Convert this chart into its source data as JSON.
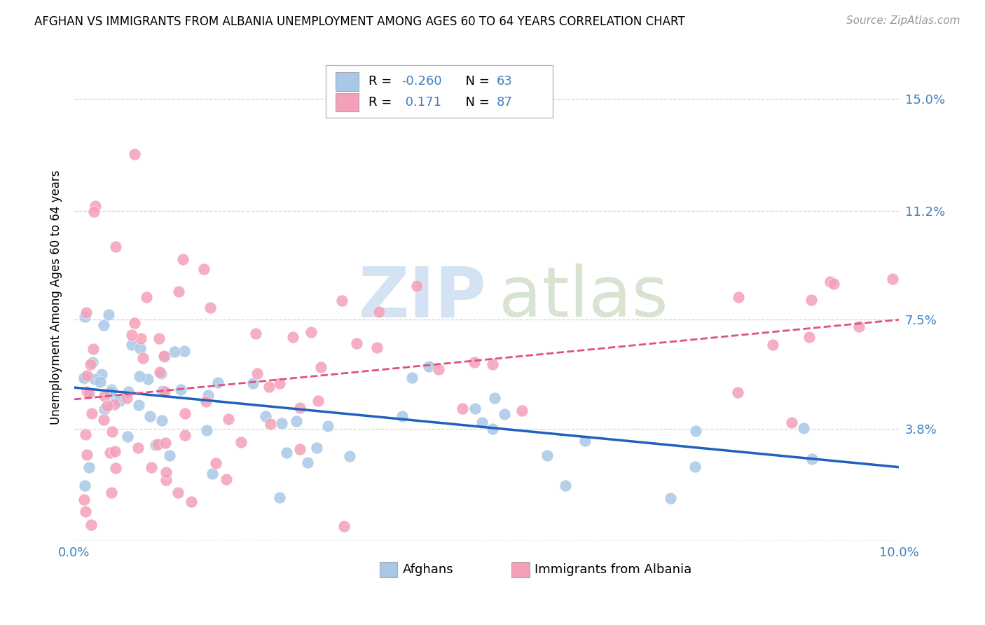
{
  "title": "AFGHAN VS IMMIGRANTS FROM ALBANIA UNEMPLOYMENT AMONG AGES 60 TO 64 YEARS CORRELATION CHART",
  "source": "Source: ZipAtlas.com",
  "ylabel": "Unemployment Among Ages 60 to 64 years",
  "xlim": [
    0.0,
    0.1
  ],
  "ylim": [
    0.0,
    0.165
  ],
  "ytick_vals": [
    0.0,
    0.038,
    0.075,
    0.112,
    0.15
  ],
  "ytick_labels": [
    "",
    "3.8%",
    "7.5%",
    "11.2%",
    "15.0%"
  ],
  "xtick_vals": [
    0.0,
    0.02,
    0.04,
    0.06,
    0.08,
    0.1
  ],
  "xtick_labels": [
    "0.0%",
    "",
    "",
    "",
    "",
    "10.0%"
  ],
  "afghans_color": "#a8c8e8",
  "albanians_color": "#f4a0b8",
  "afghans_line_color": "#2060c0",
  "albanians_line_color": "#e05080",
  "R_afghans": -0.26,
  "N_afghans": 63,
  "R_albanians": 0.171,
  "N_albanians": 87,
  "legend_label_1": "Afghans",
  "legend_label_2": "Immigrants from Albania",
  "grid_color": "#d0d0d0",
  "tick_color": "#4080c0",
  "title_fontsize": 12,
  "tick_fontsize": 13,
  "ylabel_fontsize": 12,
  "source_fontsize": 11
}
